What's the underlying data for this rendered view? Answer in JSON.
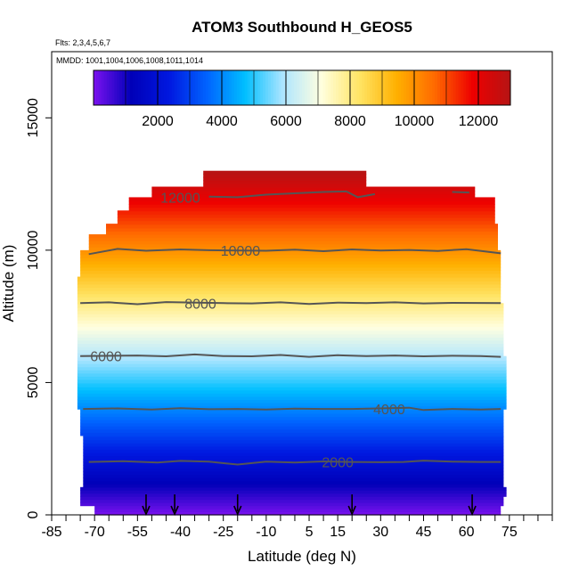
{
  "chart_data": {
    "type": "heatmap",
    "title": "ATOM3 Southbound H_GEOS5",
    "flights_note": "Flts: 2,3,4,5,6,7",
    "dates_note": "MMDD: 1001,1004,1006,1008,1011,1014",
    "xlabel": "Latitude (deg N)",
    "ylabel": "Altitude (m)",
    "xlim": [
      -85,
      90
    ],
    "ylim": [
      0,
      17500
    ],
    "x_ticks": [
      -85,
      -70,
      -55,
      -40,
      -25,
      -10,
      5,
      15,
      30,
      45,
      60,
      75
    ],
    "x_minor_ticks": [
      -85,
      -80,
      -75,
      -70,
      -65,
      -60,
      -55,
      -50,
      -45,
      -40,
      -35,
      -30,
      -25,
      -20,
      -15,
      -10,
      -5,
      0,
      5,
      10,
      15,
      20,
      25,
      30,
      35,
      40,
      45,
      50,
      55,
      60,
      65,
      70,
      75,
      80,
      85,
      90
    ],
    "y_ticks": [
      0,
      5000,
      10000,
      15000
    ],
    "colorbar": {
      "range": [
        0,
        13000
      ],
      "ticks": [
        2000,
        4000,
        6000,
        8000,
        10000,
        12000
      ],
      "colors": [
        "#7b12ef",
        "#0000b8",
        "#0018e0",
        "#0064ff",
        "#00bfff",
        "#aee5ff",
        "#ffffe0",
        "#ffe566",
        "#ffb000",
        "#ff6a00",
        "#ee0000",
        "#b51414"
      ]
    },
    "contours": [
      {
        "level": 2000,
        "label": "2000",
        "label_lat": 15,
        "points": [
          [
            -72,
            2000
          ],
          [
            -60,
            2030
          ],
          [
            -48,
            1980
          ],
          [
            -40,
            2040
          ],
          [
            -30,
            2010
          ],
          [
            -20,
            1900
          ],
          [
            -10,
            2010
          ],
          [
            0,
            1980
          ],
          [
            10,
            2020
          ],
          [
            20,
            2000
          ],
          [
            30,
            1990
          ],
          [
            38,
            2000
          ],
          [
            45,
            2050
          ],
          [
            55,
            2010
          ],
          [
            65,
            2000
          ],
          [
            72,
            2000
          ]
        ]
      },
      {
        "level": 4000,
        "label": "4000",
        "label_lat": 33,
        "points": [
          [
            -74,
            4000
          ],
          [
            -62,
            4020
          ],
          [
            -50,
            3980
          ],
          [
            -40,
            4030
          ],
          [
            -30,
            3990
          ],
          [
            -20,
            4000
          ],
          [
            -10,
            3980
          ],
          [
            0,
            4010
          ],
          [
            10,
            4000
          ],
          [
            20,
            4000
          ],
          [
            40,
            4050
          ],
          [
            45,
            3960
          ],
          [
            55,
            4000
          ],
          [
            65,
            3980
          ],
          [
            72,
            4000
          ]
        ]
      },
      {
        "level": 6000,
        "label": "6000",
        "label_lat": -66,
        "points": [
          [
            -75,
            6000
          ],
          [
            -55,
            6020
          ],
          [
            -45,
            5990
          ],
          [
            -35,
            6060
          ],
          [
            -25,
            6000
          ],
          [
            -15,
            5990
          ],
          [
            -5,
            6040
          ],
          [
            5,
            5970
          ],
          [
            15,
            6030
          ],
          [
            25,
            6000
          ],
          [
            35,
            6020
          ],
          [
            45,
            5990
          ],
          [
            55,
            6010
          ],
          [
            65,
            6000
          ],
          [
            72,
            5970
          ]
        ]
      },
      {
        "level": 8000,
        "label": "8000",
        "label_lat": -33,
        "points": [
          [
            -75,
            8000
          ],
          [
            -65,
            8030
          ],
          [
            -55,
            7960
          ],
          [
            -45,
            8040
          ],
          [
            -25,
            8000
          ],
          [
            -15,
            7990
          ],
          [
            -5,
            8030
          ],
          [
            5,
            7970
          ],
          [
            15,
            8020
          ],
          [
            25,
            8000
          ],
          [
            35,
            8030
          ],
          [
            45,
            7990
          ],
          [
            55,
            8010
          ],
          [
            72,
            8000
          ]
        ]
      },
      {
        "level": 10000,
        "label": "10000",
        "label_lat": -19,
        "points": [
          [
            -72,
            9850
          ],
          [
            -62,
            10050
          ],
          [
            -52,
            9980
          ],
          [
            -40,
            10030
          ],
          [
            -30,
            10000
          ],
          [
            -10,
            9980
          ],
          [
            0,
            10020
          ],
          [
            10,
            9960
          ],
          [
            20,
            10030
          ],
          [
            30,
            9990
          ],
          [
            40,
            10010
          ],
          [
            50,
            9970
          ],
          [
            60,
            10040
          ],
          [
            72,
            9880
          ]
        ]
      },
      {
        "level": 12000,
        "label": "12000",
        "label_lat": -40,
        "points": [
          [
            -30,
            12020
          ],
          [
            -20,
            12000
          ],
          [
            -10,
            12100
          ],
          [
            0,
            12150
          ],
          [
            10,
            12200
          ],
          [
            18,
            12220
          ],
          [
            22,
            12000
          ],
          [
            28,
            12120
          ]
        ]
      }
    ],
    "contour_segment_2": [
      [
        55,
        12200
      ],
      [
        61,
        12180
      ]
    ],
    "profile_markers_lat": [
      -52,
      -42,
      -20,
      20,
      62
    ]
  }
}
